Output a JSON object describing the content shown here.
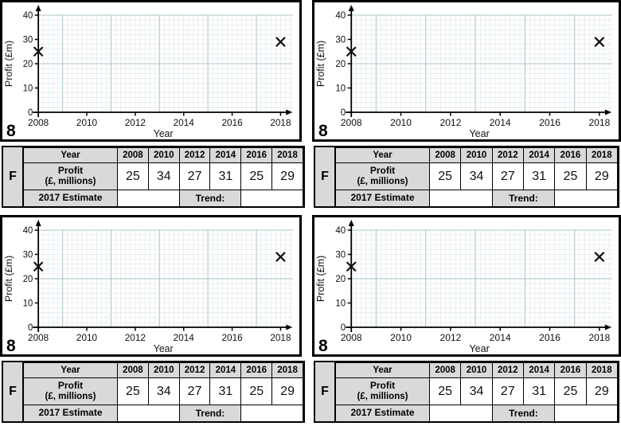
{
  "shared": {
    "question_label": "8",
    "panel_label": "F",
    "table": {
      "year_header": "Year",
      "years": [
        "2008",
        "2010",
        "2012",
        "2014",
        "2016",
        "2018"
      ],
      "profit_line1": "Profit",
      "profit_line2": "(£, millions)",
      "profit_values": [
        "25",
        "34",
        "27",
        "31",
        "25",
        "29"
      ],
      "estimate_label": "2017 Estimate",
      "trend_label": "Trend:"
    }
  },
  "quadrants": [
    {
      "id": "top-left"
    },
    {
      "id": "top-right"
    },
    {
      "id": "bottom-left"
    },
    {
      "id": "bottom-right"
    }
  ],
  "chart_data": [
    {
      "type": "scatter",
      "title": "",
      "xlabel": "Year",
      "ylabel": "Profit (£m)",
      "xlim": [
        2008,
        2018
      ],
      "ylim": [
        0,
        40
      ],
      "x_ticks": [
        2008,
        2010,
        2012,
        2014,
        2016,
        2018
      ],
      "y_ticks": [
        0,
        10,
        20,
        30,
        40
      ],
      "grid": "fine-graph-paper",
      "legend": false,
      "marker": "x",
      "points": [
        {
          "x": 2008,
          "y": 25
        },
        {
          "x": 2018,
          "y": 29
        }
      ]
    },
    {
      "type": "scatter",
      "title": "",
      "xlabel": "Year",
      "ylabel": "Profit (£m)",
      "xlim": [
        2008,
        2018
      ],
      "ylim": [
        0,
        40
      ],
      "x_ticks": [
        2008,
        2010,
        2012,
        2014,
        2016,
        2018
      ],
      "y_ticks": [
        0,
        10,
        20,
        30,
        40
      ],
      "grid": "fine-graph-paper",
      "legend": false,
      "marker": "x",
      "points": [
        {
          "x": 2008,
          "y": 25
        },
        {
          "x": 2018,
          "y": 29
        }
      ]
    },
    {
      "type": "scatter",
      "title": "",
      "xlabel": "Year",
      "ylabel": "Profit (£m)",
      "xlim": [
        2008,
        2018
      ],
      "ylim": [
        0,
        40
      ],
      "x_ticks": [
        2008,
        2010,
        2012,
        2014,
        2016,
        2018
      ],
      "y_ticks": [
        0,
        10,
        20,
        30,
        40
      ],
      "grid": "fine-graph-paper",
      "legend": false,
      "marker": "x",
      "points": [
        {
          "x": 2008,
          "y": 25
        },
        {
          "x": 2018,
          "y": 29
        }
      ]
    },
    {
      "type": "scatter",
      "title": "",
      "xlabel": "Year",
      "ylabel": "Profit (£m)",
      "xlim": [
        2008,
        2018
      ],
      "ylim": [
        0,
        40
      ],
      "x_ticks": [
        2008,
        2010,
        2012,
        2014,
        2016,
        2018
      ],
      "y_ticks": [
        0,
        10,
        20,
        30,
        40
      ],
      "grid": "fine-graph-paper",
      "legend": false,
      "marker": "x",
      "points": [
        {
          "x": 2008,
          "y": 25
        },
        {
          "x": 2018,
          "y": 29
        }
      ]
    }
  ],
  "colors": {
    "page_bg": "#ffffff",
    "border": "#000000",
    "axis": "#000000",
    "marker": "#111111",
    "grid_minor": "#dde5e8",
    "grid_major": "#adc4ca",
    "table_header_bg": "#d9d9d9",
    "tick_text": "#111111"
  }
}
